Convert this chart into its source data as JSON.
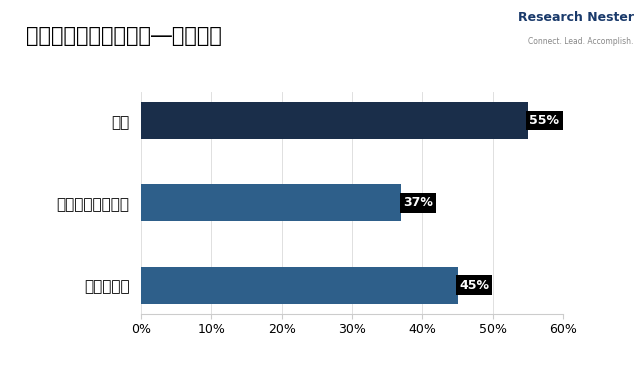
{
  "title": "穿刺排水システム市場―地域貢献",
  "categories": [
    "ヨーロッパ",
    "アジア太平洋地域",
    "北米"
  ],
  "values": [
    45,
    37,
    55
  ],
  "bar_colors": [
    "#2e5f8a",
    "#2e5f8a",
    "#1a2e4a"
  ],
  "background_color": "#ffffff",
  "xlim": [
    0,
    60
  ],
  "xticks": [
    0,
    10,
    20,
    30,
    40,
    50,
    60
  ],
  "xtick_labels": [
    "0%",
    "10%",
    "20%",
    "30%",
    "40%",
    "50%",
    "60%"
  ],
  "title_fontsize": 15,
  "tick_fontsize": 9,
  "ytick_fontsize": 11,
  "label_fontsize": 9,
  "bar_height": 0.45,
  "figsize": [
    6.4,
    3.69
  ],
  "dpi": 100,
  "logo_text1": "Research Nester",
  "logo_text2": "Connect. Lead. Accomplish.",
  "logo_color1": "#1a3a6b",
  "logo_color2": "#888888"
}
